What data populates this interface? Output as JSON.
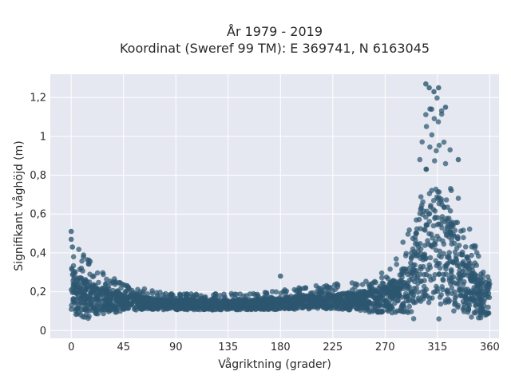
{
  "chart_data": {
    "type": "scatter",
    "title": "År 1979 - 2019",
    "subtitle": "Koordinat (Sweref 99 TM): E 369741, N 6163045",
    "xlabel": "Vågriktning (grader)",
    "ylabel": "Signifikant våghöjd (m)",
    "xlim": [
      -18,
      368
    ],
    "ylim": [
      -0.04,
      1.32
    ],
    "xticks": [
      0,
      45,
      90,
      135,
      180,
      225,
      270,
      315,
      360
    ],
    "xtick_labels": [
      "0",
      "45",
      "90",
      "135",
      "180",
      "225",
      "270",
      "315",
      "360"
    ],
    "yticks": [
      0,
      0.2,
      0.4,
      0.6,
      0.8,
      1.0,
      1.2
    ],
    "ytick_labels": [
      "0",
      "0,2",
      "0,4",
      "0,6",
      "0,8",
      "1",
      "1,2"
    ],
    "grid": true,
    "marker_color": "#2d5670",
    "background_color": "#e5e8f0",
    "envelope": {
      "x": [
        0,
        10,
        20,
        30,
        40,
        45,
        60,
        75,
        90,
        135,
        170,
        180,
        225,
        250,
        270,
        280,
        290,
        295,
        300,
        305,
        310,
        315,
        320,
        325,
        330,
        335,
        340,
        345,
        350,
        355,
        360
      ],
      "upper": [
        0.5,
        0.4,
        0.34,
        0.3,
        0.27,
        0.24,
        0.22,
        0.2,
        0.19,
        0.19,
        0.2,
        0.21,
        0.24,
        0.27,
        0.32,
        0.4,
        0.52,
        0.7,
        0.95,
        1.15,
        1.22,
        1.2,
        1.12,
        1.0,
        0.82,
        0.68,
        0.6,
        0.48,
        0.42,
        0.4,
        0.38
      ],
      "lower": [
        0.05,
        0.05,
        0.06,
        0.07,
        0.08,
        0.09,
        0.1,
        0.1,
        0.1,
        0.1,
        0.1,
        0.1,
        0.1,
        0.09,
        0.07,
        0.06,
        0.05,
        0.05,
        0.04,
        0.04,
        0.04,
        0.04,
        0.04,
        0.04,
        0.04,
        0.05,
        0.05,
        0.05,
        0.05,
        0.05,
        0.05
      ]
    },
    "highlight_points": [
      {
        "x": 0,
        "y": 0.51
      },
      {
        "x": 0,
        "y": 0.47
      },
      {
        "x": 1,
        "y": 0.43
      },
      {
        "x": 180,
        "y": 0.28
      },
      {
        "x": 305,
        "y": 1.27
      },
      {
        "x": 308,
        "y": 1.25
      },
      {
        "x": 312,
        "y": 1.23
      },
      {
        "x": 316,
        "y": 1.25
      },
      {
        "x": 310,
        "y": 1.14
      },
      {
        "x": 322,
        "y": 1.15
      },
      {
        "x": 333,
        "y": 0.88
      }
    ]
  }
}
